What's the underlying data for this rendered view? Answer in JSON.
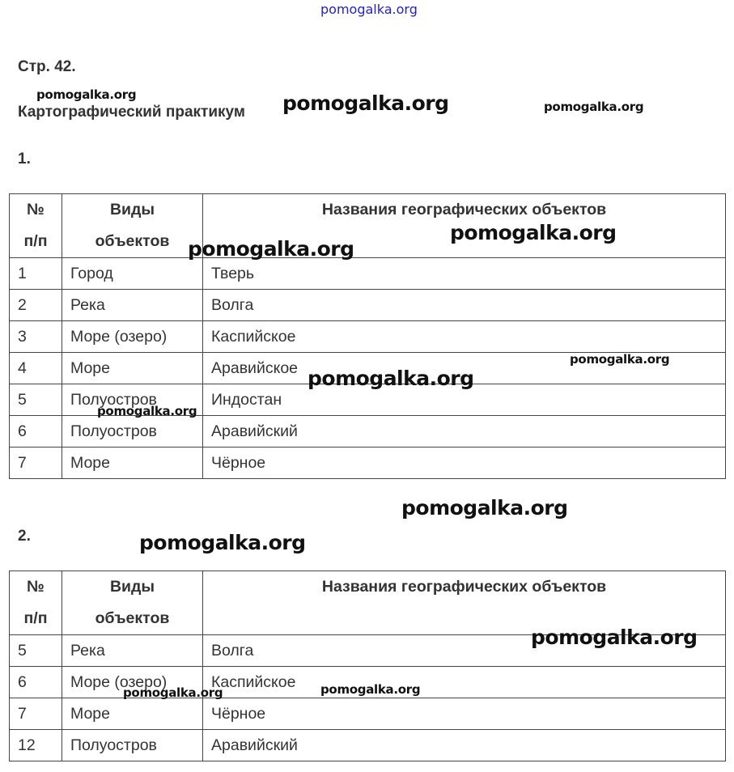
{
  "watermark_text": "pomogalka.org",
  "page_heading": "Стр. 42.",
  "section_title": "Картографический практикум",
  "task1": {
    "number": "1.",
    "headers": {
      "num_line1": "№",
      "num_line2": "п/п",
      "type_line1": "Виды",
      "type_line2": "объектов",
      "names": "Названия географических объектов"
    },
    "rows": [
      {
        "num": "1",
        "type": "Город",
        "name": "Тверь"
      },
      {
        "num": "2",
        "type": "Река",
        "name": "Волга"
      },
      {
        "num": "3",
        "type": "Море (озеро)",
        "name": "Каспийское"
      },
      {
        "num": "4",
        "type": "Море",
        "name": "Аравийское"
      },
      {
        "num": "5",
        "type": "Полуостров",
        "name": "Индостан"
      },
      {
        "num": "6",
        "type": "Полуостров",
        "name": "Аравийский"
      },
      {
        "num": "7",
        "type": "Море",
        "name": "Чёрное"
      }
    ]
  },
  "task2": {
    "number": "2.",
    "headers": {
      "num_line1": "№",
      "num_line2": "п/п",
      "type_line1": "Виды",
      "type_line2": "объектов",
      "names": "Названия географических объектов"
    },
    "rows": [
      {
        "num": "5",
        "type": "Река",
        "name": "Волга"
      },
      {
        "num": "6",
        "type": "Море (озеро)",
        "name": "Каспийское"
      },
      {
        "num": "7",
        "type": "Море",
        "name": "Чёрное"
      },
      {
        "num": "12",
        "type": "Полуостров",
        "name": "Аравийский"
      }
    ]
  }
}
